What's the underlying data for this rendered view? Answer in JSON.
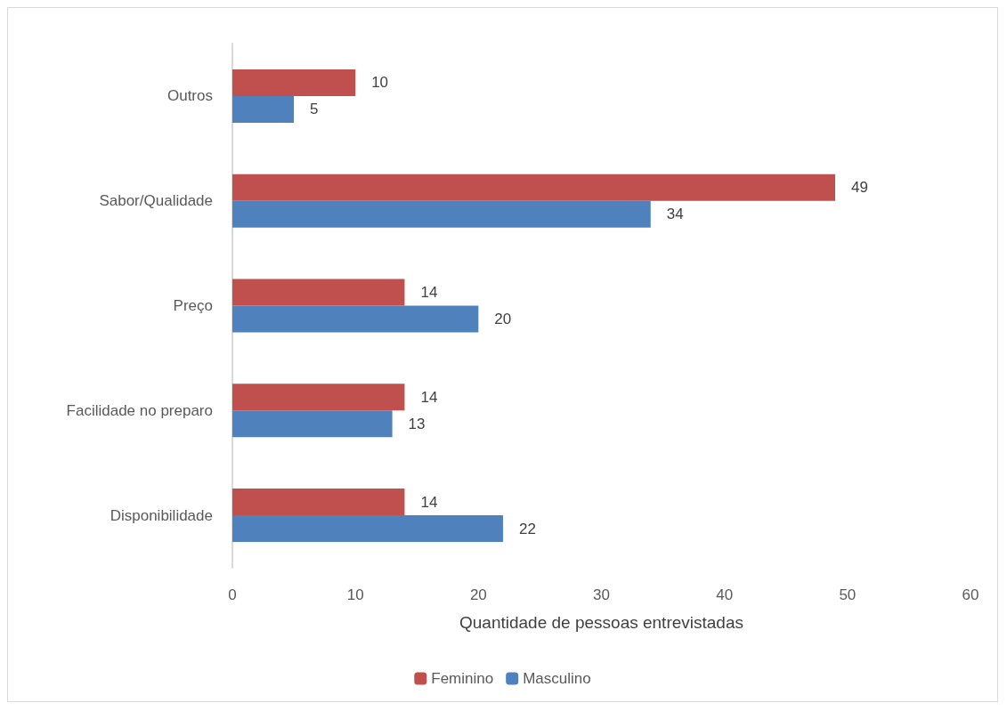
{
  "chart_data": {
    "type": "bar",
    "orientation": "horizontal",
    "xlabel": "Quantidade de pessoas entrevistadas",
    "categories": [
      "Outros",
      "Sabor/Qualidade",
      "Preço",
      "Facilidade no preparo",
      "Disponibilidade"
    ],
    "series": [
      {
        "name": "Feminino",
        "color": "#c0504d",
        "values": [
          10,
          49,
          14,
          14,
          14
        ]
      },
      {
        "name": "Masculino",
        "color": "#4f81bd",
        "values": [
          5,
          34,
          20,
          13,
          22
        ]
      }
    ],
    "xlim": [
      0,
      60
    ],
    "xticks": [
      0,
      10,
      20,
      30,
      40,
      50,
      60
    ],
    "data_labels": true,
    "grid": false,
    "legend": "bottom"
  }
}
